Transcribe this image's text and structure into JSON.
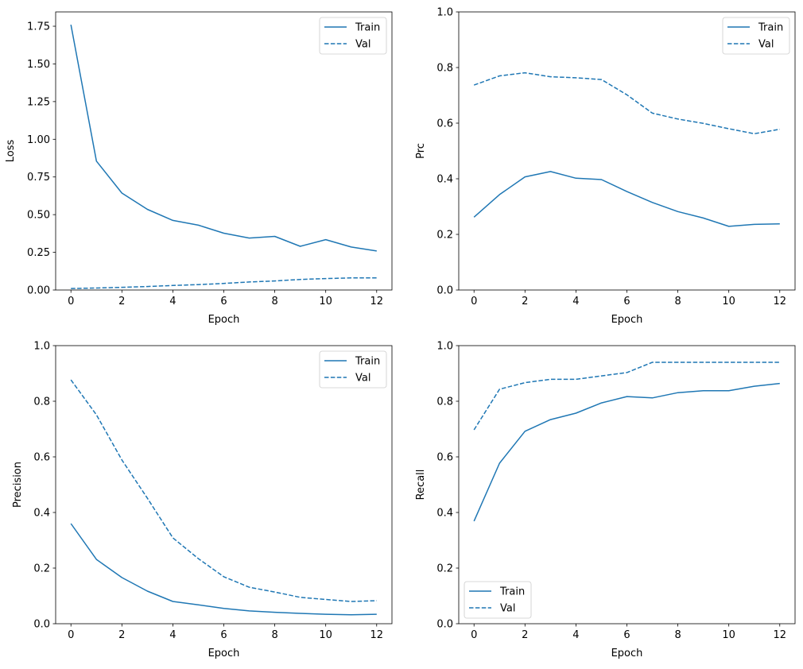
{
  "chart_data": [
    {
      "type": "line",
      "xlabel": "Epoch",
      "ylabel": "Loss",
      "x": [
        0,
        1,
        2,
        3,
        4,
        5,
        6,
        7,
        8,
        9,
        10,
        11,
        12
      ],
      "xlim": [
        -0.6,
        12.6
      ],
      "ylim": [
        0,
        1.845
      ],
      "xticks": [
        0,
        2,
        4,
        6,
        8,
        10,
        12
      ],
      "yticks": [
        0.0,
        0.25,
        0.5,
        0.75,
        1.0,
        1.25,
        1.5,
        1.75
      ],
      "ytick_labels": [
        "0.00",
        "0.25",
        "0.50",
        "0.75",
        "1.00",
        "1.25",
        "1.50",
        "1.75"
      ],
      "legend": "upper-right",
      "grid": false,
      "series": [
        {
          "name": "Train",
          "style": "solid",
          "values": [
            1.76,
            0.855,
            0.643,
            0.535,
            0.462,
            0.43,
            0.377,
            0.345,
            0.356,
            0.29,
            0.334,
            0.285,
            0.259
          ]
        },
        {
          "name": "Val",
          "style": "dashed",
          "values": [
            0.01,
            0.013,
            0.018,
            0.023,
            0.03,
            0.036,
            0.044,
            0.053,
            0.06,
            0.07,
            0.076,
            0.08,
            0.08
          ]
        }
      ]
    },
    {
      "type": "line",
      "xlabel": "Epoch",
      "ylabel": "Prc",
      "x": [
        0,
        1,
        2,
        3,
        4,
        5,
        6,
        7,
        8,
        9,
        10,
        11,
        12
      ],
      "xlim": [
        -0.6,
        12.6
      ],
      "ylim": [
        0,
        1
      ],
      "xticks": [
        0,
        2,
        4,
        6,
        8,
        10,
        12
      ],
      "yticks": [
        0,
        0.2,
        0.4,
        0.6,
        0.8,
        1.0
      ],
      "ytick_labels": [
        "0.0",
        "0.2",
        "0.4",
        "0.6",
        "0.8",
        "1.0"
      ],
      "legend": "upper-right",
      "grid": false,
      "series": [
        {
          "name": "Train",
          "style": "solid",
          "values": [
            0.262,
            0.343,
            0.407,
            0.426,
            0.402,
            0.397,
            0.354,
            0.315,
            0.282,
            0.259,
            0.229,
            0.236,
            0.238
          ]
        },
        {
          "name": "Val",
          "style": "dashed",
          "values": [
            0.737,
            0.77,
            0.781,
            0.767,
            0.763,
            0.757,
            0.702,
            0.636,
            0.615,
            0.599,
            0.58,
            0.562,
            0.578
          ]
        }
      ]
    },
    {
      "type": "line",
      "xlabel": "Epoch",
      "ylabel": "Precision",
      "x": [
        0,
        1,
        2,
        3,
        4,
        5,
        6,
        7,
        8,
        9,
        10,
        11,
        12
      ],
      "xlim": [
        -0.6,
        12.6
      ],
      "ylim": [
        0,
        1
      ],
      "xticks": [
        0,
        2,
        4,
        6,
        8,
        10,
        12
      ],
      "yticks": [
        0,
        0.2,
        0.4,
        0.6,
        0.8,
        1.0
      ],
      "ytick_labels": [
        "0.0",
        "0.2",
        "0.4",
        "0.6",
        "0.8",
        "1.0"
      ],
      "legend": "upper-right",
      "grid": false,
      "series": [
        {
          "name": "Train",
          "style": "solid",
          "values": [
            0.36,
            0.231,
            0.166,
            0.117,
            0.08,
            0.068,
            0.055,
            0.046,
            0.041,
            0.037,
            0.034,
            0.032,
            0.034
          ]
        },
        {
          "name": "Val",
          "style": "dashed",
          "values": [
            0.877,
            0.751,
            0.589,
            0.451,
            0.309,
            0.234,
            0.169,
            0.131,
            0.114,
            0.095,
            0.087,
            0.08,
            0.083
          ]
        }
      ]
    },
    {
      "type": "line",
      "xlabel": "Epoch",
      "ylabel": "Recall",
      "x": [
        0,
        1,
        2,
        3,
        4,
        5,
        6,
        7,
        8,
        9,
        10,
        11,
        12
      ],
      "xlim": [
        -0.6,
        12.6
      ],
      "ylim": [
        0,
        1
      ],
      "xticks": [
        0,
        2,
        4,
        6,
        8,
        10,
        12
      ],
      "yticks": [
        0,
        0.2,
        0.4,
        0.6,
        0.8,
        1.0
      ],
      "ytick_labels": [
        "0.0",
        "0.2",
        "0.4",
        "0.6",
        "0.8",
        "1.0"
      ],
      "legend": "lower-left",
      "grid": false,
      "series": [
        {
          "name": "Train",
          "style": "solid",
          "values": [
            0.369,
            0.577,
            0.692,
            0.734,
            0.757,
            0.794,
            0.817,
            0.812,
            0.831,
            0.838,
            0.838,
            0.854,
            0.864
          ]
        },
        {
          "name": "Val",
          "style": "dashed",
          "values": [
            0.697,
            0.843,
            0.867,
            0.879,
            0.879,
            0.891,
            0.903,
            0.94,
            0.94,
            0.94,
            0.94,
            0.94,
            0.94
          ]
        }
      ]
    }
  ],
  "colors": {
    "line": "#1f77b4"
  }
}
